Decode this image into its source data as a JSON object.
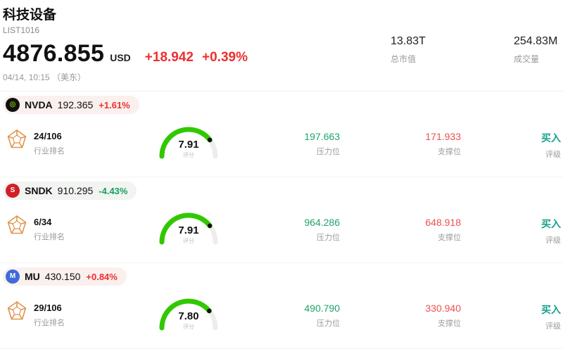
{
  "header": {
    "title": "科技设备",
    "subtitle": "LIST1016",
    "price": "4876.855",
    "currency": "USD",
    "change": "+18.942",
    "change_pct": "+0.39%",
    "timestamp": "04/14, 10:15 （美东）",
    "stats": [
      {
        "value": "13.83T",
        "label": "总市值"
      },
      {
        "value": "254.83M",
        "label": "成交量"
      }
    ]
  },
  "labels": {
    "rank": "行业排名",
    "score": "评分",
    "resistance": "压力位",
    "support": "支撑位",
    "rating_label": "评级"
  },
  "colors": {
    "up": "#ee2f2f",
    "down": "#14a05e",
    "resistance": "#1fa36b",
    "support": "#ee4f4f",
    "rating": "#16a08c",
    "gauge": "#31c800",
    "pill_up": "#faf0ee",
    "pill_down": "#f2f4f2"
  },
  "stocks": [
    {
      "ticker": "NVDA",
      "price": "192.365",
      "change_pct": "+1.61%",
      "direction": "up",
      "rank": "24/106",
      "score": "7.91",
      "score_pct": 0.791,
      "resistance": "197.663",
      "support": "171.933",
      "rating": "买入",
      "logo": {
        "name": "nvidia-logo",
        "bg": "#101010",
        "fg": "#76b900",
        "glyph": "◎"
      }
    },
    {
      "ticker": "SNDK",
      "price": "910.295",
      "change_pct": "-4.43%",
      "direction": "down",
      "rank": "6/34",
      "score": "7.91",
      "score_pct": 0.791,
      "resistance": "964.286",
      "support": "648.918",
      "rating": "买入",
      "logo": {
        "name": "sandisk-logo",
        "bg": "#d21f26",
        "fg": "#ffffff",
        "glyph": "S"
      }
    },
    {
      "ticker": "MU",
      "price": "430.150",
      "change_pct": "+0.84%",
      "direction": "up",
      "rank": "29/106",
      "score": "7.80",
      "score_pct": 0.78,
      "resistance": "490.790",
      "support": "330.940",
      "rating": "买入",
      "logo": {
        "name": "micron-logo",
        "bg": "#3f6ad8",
        "fg": "#ffffff",
        "glyph": "M"
      }
    }
  ]
}
